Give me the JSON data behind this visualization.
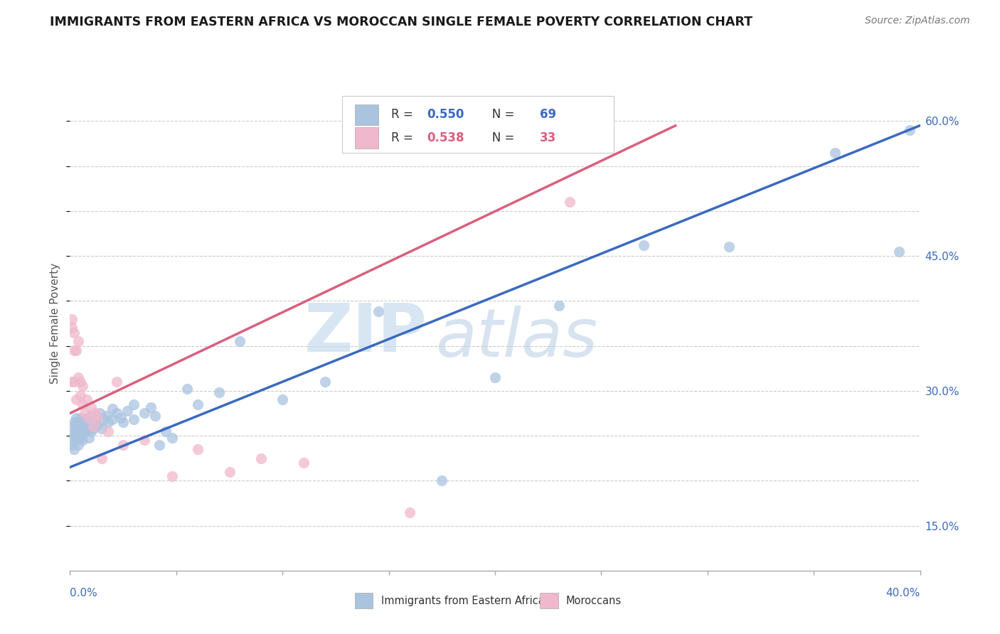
{
  "title": "IMMIGRANTS FROM EASTERN AFRICA VS MOROCCAN SINGLE FEMALE POVERTY CORRELATION CHART",
  "source": "Source: ZipAtlas.com",
  "ylabel": "Single Female Poverty",
  "xmin": 0.0,
  "xmax": 0.4,
  "ymin": 0.1,
  "ymax": 0.65,
  "blue_R": 0.55,
  "blue_N": 69,
  "pink_R": 0.538,
  "pink_N": 33,
  "blue_dot_color": "#aac4e0",
  "pink_dot_color": "#f0b8cc",
  "blue_line_color": "#3a6abf",
  "pink_line_color": "#d9607e",
  "legend_label_blue": "Immigrants from Eastern Africa",
  "legend_label_pink": "Moroccans",
  "watermark_zip": "ZIP",
  "watermark_atlas": "atlas",
  "ytick_positions": [
    0.15,
    0.2,
    0.25,
    0.3,
    0.35,
    0.4,
    0.45,
    0.5,
    0.55,
    0.6
  ],
  "ytick_show": [
    0.15,
    0.3,
    0.45,
    0.6
  ],
  "ytick_labels_show": [
    "15.0%",
    "30.0%",
    "45.0%",
    "60.0%"
  ],
  "blue_line_x0": 0.0,
  "blue_line_y0": 0.215,
  "blue_line_x1": 0.4,
  "blue_line_y1": 0.595,
  "pink_line_x0": 0.0,
  "pink_line_y0": 0.275,
  "pink_line_x1": 0.285,
  "pink_line_y1": 0.595,
  "blue_scatter_x": [
    0.001,
    0.001,
    0.001,
    0.002,
    0.002,
    0.002,
    0.002,
    0.003,
    0.003,
    0.003,
    0.003,
    0.004,
    0.004,
    0.004,
    0.004,
    0.005,
    0.005,
    0.005,
    0.005,
    0.006,
    0.006,
    0.006,
    0.007,
    0.007,
    0.007,
    0.008,
    0.008,
    0.009,
    0.009,
    0.01,
    0.01,
    0.01,
    0.011,
    0.012,
    0.013,
    0.014,
    0.015,
    0.016,
    0.017,
    0.018,
    0.02,
    0.02,
    0.022,
    0.024,
    0.025,
    0.027,
    0.03,
    0.03,
    0.035,
    0.038,
    0.04,
    0.042,
    0.045,
    0.048,
    0.055,
    0.06,
    0.07,
    0.08,
    0.1,
    0.12,
    0.145,
    0.175,
    0.2,
    0.23,
    0.27,
    0.31,
    0.36,
    0.39,
    0.395
  ],
  "blue_scatter_y": [
    0.245,
    0.26,
    0.24,
    0.255,
    0.265,
    0.25,
    0.235,
    0.26,
    0.255,
    0.245,
    0.27,
    0.258,
    0.25,
    0.265,
    0.24,
    0.262,
    0.255,
    0.27,
    0.247,
    0.26,
    0.252,
    0.245,
    0.268,
    0.255,
    0.262,
    0.27,
    0.258,
    0.26,
    0.248,
    0.265,
    0.255,
    0.272,
    0.258,
    0.268,
    0.262,
    0.275,
    0.258,
    0.268,
    0.272,
    0.265,
    0.28,
    0.268,
    0.275,
    0.27,
    0.265,
    0.278,
    0.285,
    0.268,
    0.275,
    0.282,
    0.272,
    0.24,
    0.255,
    0.248,
    0.302,
    0.285,
    0.298,
    0.355,
    0.29,
    0.31,
    0.388,
    0.2,
    0.315,
    0.395,
    0.462,
    0.46,
    0.565,
    0.455,
    0.59
  ],
  "pink_scatter_x": [
    0.001,
    0.001,
    0.001,
    0.002,
    0.002,
    0.002,
    0.003,
    0.003,
    0.004,
    0.004,
    0.005,
    0.005,
    0.006,
    0.006,
    0.007,
    0.008,
    0.009,
    0.01,
    0.011,
    0.012,
    0.013,
    0.015,
    0.018,
    0.022,
    0.025,
    0.035,
    0.048,
    0.06,
    0.075,
    0.09,
    0.11,
    0.16,
    0.235
  ],
  "pink_scatter_y": [
    0.38,
    0.37,
    0.31,
    0.365,
    0.345,
    0.31,
    0.345,
    0.29,
    0.355,
    0.315,
    0.295,
    0.31,
    0.305,
    0.285,
    0.275,
    0.29,
    0.27,
    0.282,
    0.26,
    0.275,
    0.27,
    0.225,
    0.255,
    0.31,
    0.24,
    0.245,
    0.205,
    0.235,
    0.21,
    0.225,
    0.22,
    0.165,
    0.51
  ]
}
